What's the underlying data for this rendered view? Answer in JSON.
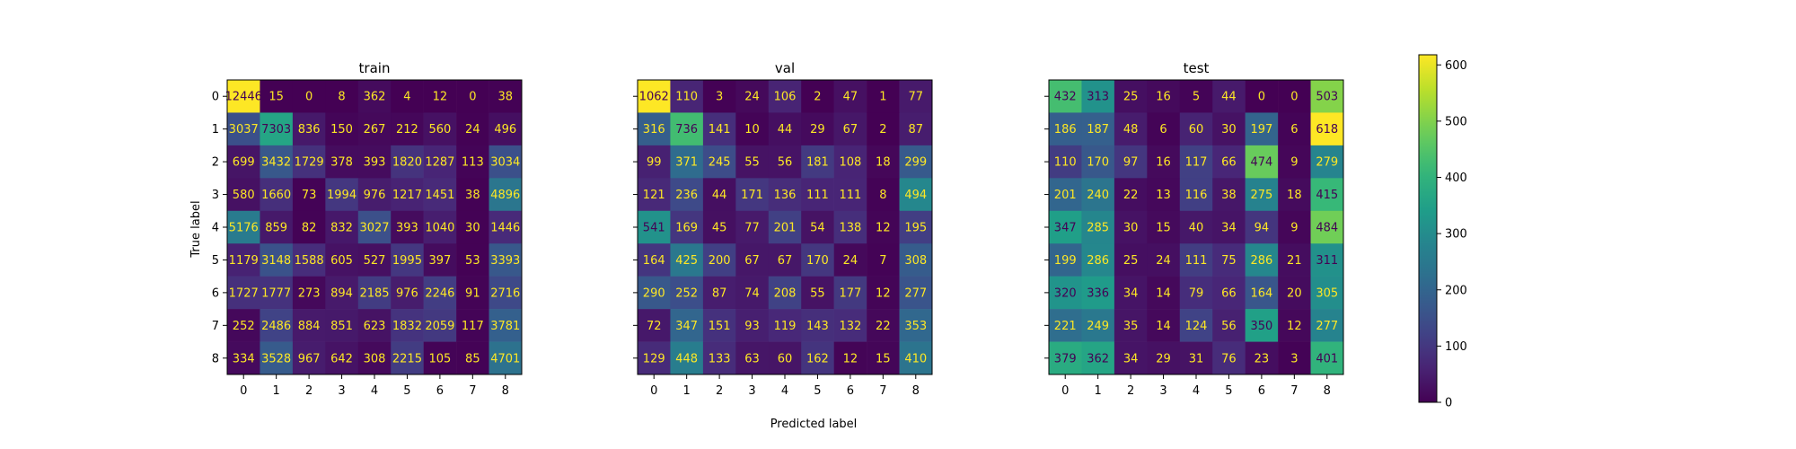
{
  "figure": {
    "xlabel": "Predicted label",
    "ylabel": "True label"
  },
  "chart_data": [
    {
      "type": "heatmap",
      "title": "train",
      "x_ticks": [
        "0",
        "1",
        "2",
        "3",
        "4",
        "5",
        "6",
        "7",
        "8"
      ],
      "y_ticks": [
        "0",
        "1",
        "2",
        "3",
        "4",
        "5",
        "6",
        "7",
        "8"
      ],
      "values": [
        [
          12446,
          15,
          0,
          8,
          362,
          4,
          12,
          0,
          38
        ],
        [
          3037,
          7303,
          836,
          150,
          267,
          212,
          560,
          24,
          496
        ],
        [
          699,
          3432,
          1729,
          378,
          393,
          1820,
          1287,
          113,
          3034
        ],
        [
          580,
          1660,
          73,
          1994,
          976,
          1217,
          1451,
          38,
          4896
        ],
        [
          5176,
          859,
          82,
          832,
          3027,
          393,
          1040,
          30,
          1446
        ],
        [
          1179,
          3148,
          1588,
          605,
          527,
          1995,
          397,
          53,
          3393
        ],
        [
          1727,
          1777,
          273,
          894,
          2185,
          976,
          2246,
          91,
          2716
        ],
        [
          252,
          2486,
          884,
          851,
          623,
          1832,
          2059,
          117,
          3781
        ],
        [
          334,
          3528,
          967,
          642,
          308,
          2215,
          105,
          85,
          4701
        ]
      ]
    },
    {
      "type": "heatmap",
      "title": "val",
      "x_ticks": [
        "0",
        "1",
        "2",
        "3",
        "4",
        "5",
        "6",
        "7",
        "8"
      ],
      "y_ticks": [
        "0",
        "1",
        "2",
        "3",
        "4",
        "5",
        "6",
        "7",
        "8"
      ],
      "values": [
        [
          1062,
          110,
          3,
          24,
          106,
          2,
          47,
          1,
          77
        ],
        [
          316,
          736,
          141,
          10,
          44,
          29,
          67,
          2,
          87
        ],
        [
          99,
          371,
          245,
          55,
          56,
          181,
          108,
          18,
          299
        ],
        [
          121,
          236,
          44,
          171,
          136,
          111,
          111,
          8,
          494
        ],
        [
          541,
          169,
          45,
          77,
          201,
          54,
          138,
          12,
          195
        ],
        [
          164,
          425,
          200,
          67,
          67,
          170,
          24,
          7,
          308
        ],
        [
          290,
          252,
          87,
          74,
          208,
          55,
          177,
          12,
          277
        ],
        [
          72,
          347,
          151,
          93,
          119,
          143,
          132,
          22,
          353
        ],
        [
          129,
          448,
          133,
          63,
          60,
          162,
          12,
          15,
          410
        ]
      ]
    },
    {
      "type": "heatmap",
      "title": "test",
      "x_ticks": [
        "0",
        "1",
        "2",
        "3",
        "4",
        "5",
        "6",
        "7",
        "8"
      ],
      "y_ticks": [
        "0",
        "1",
        "2",
        "3",
        "4",
        "5",
        "6",
        "7",
        "8"
      ],
      "values": [
        [
          432,
          313,
          25,
          16,
          5,
          44,
          0,
          0,
          503
        ],
        [
          186,
          187,
          48,
          6,
          60,
          30,
          197,
          6,
          618
        ],
        [
          110,
          170,
          97,
          16,
          117,
          66,
          474,
          9,
          279
        ],
        [
          201,
          240,
          22,
          13,
          116,
          38,
          275,
          18,
          415
        ],
        [
          347,
          285,
          30,
          15,
          40,
          34,
          94,
          9,
          484
        ],
        [
          199,
          286,
          25,
          24,
          111,
          75,
          286,
          21,
          311
        ],
        [
          320,
          336,
          34,
          14,
          79,
          66,
          164,
          20,
          305
        ],
        [
          221,
          249,
          35,
          14,
          124,
          56,
          350,
          12,
          277
        ],
        [
          379,
          362,
          34,
          29,
          31,
          76,
          23,
          3,
          401
        ]
      ]
    }
  ],
  "colorbar": {
    "colormap": "viridis",
    "range": [
      0,
      618
    ],
    "ticks": [
      0,
      100,
      200,
      300,
      400,
      500,
      600
    ]
  },
  "colors": {
    "text_on_dark": "#fde725",
    "text_on_light": "#440154"
  }
}
